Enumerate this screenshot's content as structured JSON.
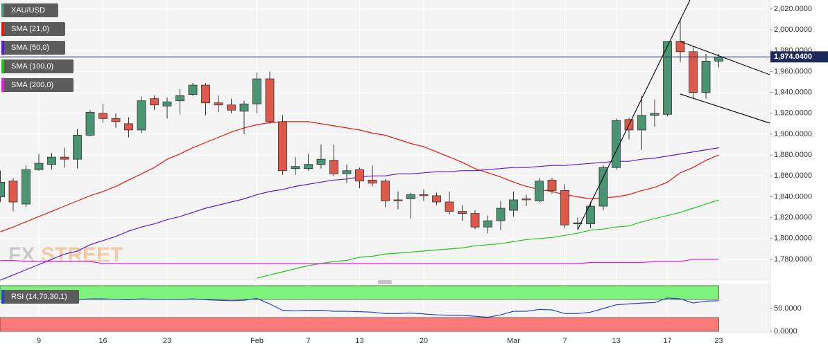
{
  "chart_data": {
    "type": "candlestick",
    "title": "XAU/USD",
    "up_color": "#4a9473",
    "down_color": "#e0584a",
    "categories": [
      null,
      null,
      null,
      "9",
      null,
      null,
      null,
      null,
      "16",
      null,
      null,
      null,
      null,
      "23",
      null,
      null,
      null,
      null,
      null,
      null,
      "Feb",
      null,
      null,
      null,
      "7",
      null,
      null,
      null,
      "13",
      null,
      null,
      null,
      null,
      "20",
      null,
      null,
      null,
      null,
      null,
      null,
      "Mar",
      null,
      null,
      null,
      "7",
      null,
      null,
      null,
      "13",
      null,
      null,
      null,
      "17",
      null,
      null,
      null,
      "23"
    ],
    "open": [
      1840,
      1855,
      1833,
      1866,
      1871,
      1878,
      1876,
      1899,
      1920,
      1915,
      1910,
      1904,
      1934,
      1927,
      1932,
      1938,
      1947,
      1930,
      1928,
      1922,
      1929,
      1953,
      1912,
      1867,
      1867,
      1871,
      1875,
      1862,
      1866,
      1856,
      1855,
      1837,
      1838,
      1842,
      1841,
      1835,
      1826,
      1824,
      1811,
      1817,
      1827,
      1838,
      1836,
      1856,
      1846,
      1814,
      1814,
      1831,
      1868,
      1914,
      1904,
      1918,
      1919,
      1989,
      1979,
      1940,
      1970
    ],
    "high": [
      1865,
      1858,
      1870,
      1881,
      1882,
      1887,
      1905,
      1923,
      1929,
      1920,
      1916,
      1936,
      1937,
      1935,
      1943,
      1949,
      1949,
      1937,
      1934,
      1932,
      1959,
      1960,
      1918,
      1878,
      1881,
      1890,
      1890,
      1871,
      1868,
      1870,
      1857,
      1845,
      1844,
      1847,
      1844,
      1845,
      1832,
      1827,
      1822,
      1836,
      1845,
      1842,
      1858,
      1858,
      1852,
      1820,
      1835,
      1870,
      1915,
      1916,
      1937,
      1933,
      1989,
      2010,
      1984,
      1977,
      1977
    ],
    "low": [
      1835,
      1826,
      1830,
      1865,
      1866,
      1868,
      1867,
      1898,
      1911,
      1906,
      1897,
      1901,
      1923,
      1915,
      1919,
      1937,
      1918,
      1921,
      1920,
      1900,
      1920,
      1910,
      1861,
      1861,
      1865,
      1867,
      1860,
      1853,
      1848,
      1850,
      1830,
      1828,
      1819,
      1836,
      1832,
      1823,
      1817,
      1809,
      1805,
      1808,
      1821,
      1831,
      1835,
      1843,
      1810,
      1808,
      1810,
      1827,
      1866,
      1895,
      1885,
      1907,
      1917,
      1969,
      1934,
      1934,
      1964
    ],
    "close": [
      1854,
      1835,
      1866,
      1872,
      1878,
      1876,
      1899,
      1921,
      1915,
      1912,
      1904,
      1932,
      1928,
      1931,
      1937,
      1947,
      1930,
      1928,
      1923,
      1929,
      1953,
      1912,
      1865,
      1869,
      1871,
      1876,
      1862,
      1865,
      1855,
      1853,
      1836,
      1836,
      1842,
      1841,
      1835,
      1826,
      1824,
      1811,
      1817,
      1829,
      1837,
      1837,
      1855,
      1846,
      1813,
      1815,
      1831,
      1868,
      1913,
      1904,
      1918,
      1920,
      1989,
      1979,
      1940,
      1970,
      1974
    ],
    "ylim": [
      1761.4,
      2028.6
    ],
    "yticks": [
      {
        "value": 1780,
        "label": "1,780.0000"
      },
      {
        "value": 1800,
        "label": "1,800.0000"
      },
      {
        "value": 1820,
        "label": "1,820.0000"
      },
      {
        "value": 1840,
        "label": "1,840.0000"
      },
      {
        "value": 1860,
        "label": "1,860.0000"
      },
      {
        "value": 1880,
        "label": "1,880.0000"
      },
      {
        "value": 1900,
        "label": "1,900.0000"
      },
      {
        "value": 1920,
        "label": "1,920.0000"
      },
      {
        "value": 1940,
        "label": "1,940.0000"
      },
      {
        "value": 1960,
        "label": "1,960.0000"
      },
      {
        "value": 1980,
        "label": "1,980.0000"
      },
      {
        "value": 2000,
        "label": "2,000.0000"
      },
      {
        "value": 2020,
        "label": "2,020.0000"
      }
    ],
    "current_price": {
      "value": 1974.04,
      "label": "1,974.0400"
    },
    "current_color": "#1e2a5a",
    "series": [
      {
        "name": "SMA (21,0)",
        "color": "#e8160c",
        "values": [
          1806.5,
          1811,
          1816,
          1821,
          1826,
          1831,
          1836,
          1841,
          1845,
          1850,
          1856,
          1862,
          1868,
          1876,
          1881,
          1887,
          1892,
          1897,
          1902,
          1906,
          1909,
          1911,
          1912,
          1912,
          1912,
          1910,
          1908,
          1906,
          1904,
          1901,
          1899,
          1895,
          1891,
          1888,
          1883,
          1878,
          1873,
          1867,
          1863,
          1859,
          1854,
          1850,
          1847,
          1845,
          1842,
          1840,
          1838,
          1839,
          1840,
          1842,
          1846,
          1849,
          1854,
          1863,
          1868,
          1875,
          1880
        ]
      },
      {
        "name": "SMA (50,0)",
        "color": "#5b19d9",
        "values": [
          1760,
          1765,
          1770,
          1775,
          1780,
          1785,
          1788,
          1794,
          1798,
          1802,
          1807,
          1811,
          1814,
          1818,
          1821,
          1825,
          1829,
          1832,
          1835,
          1838,
          1842,
          1845,
          1847,
          1850,
          1852,
          1854,
          1856,
          1857,
          1859,
          1860,
          1860,
          1862,
          1862,
          1863,
          1864,
          1864,
          1865,
          1865,
          1866,
          1867,
          1868,
          1868,
          1869,
          1870,
          1870,
          1871,
          1872,
          1873,
          1874,
          1874,
          1876,
          1877,
          1879,
          1881,
          1883,
          1885,
          1887
        ]
      },
      {
        "name": "SMA (100,0)",
        "color": "#22c41d",
        "values": [
          null,
          null,
          null,
          null,
          null,
          null,
          null,
          null,
          null,
          null,
          null,
          null,
          null,
          null,
          null,
          null,
          null,
          null,
          null,
          null,
          1762,
          1765,
          1768,
          1771,
          1774,
          1776,
          1778,
          1779,
          1782,
          1783,
          1785,
          1786,
          1787,
          1788,
          1789,
          1790,
          1791,
          1793,
          1794,
          1795,
          1797,
          1799,
          1800,
          1801,
          1803,
          1805,
          1808,
          1809,
          1811,
          1812,
          1816,
          1819,
          1822,
          1825,
          1829,
          1833,
          1837
        ]
      },
      {
        "name": "SMA (200,0)",
        "color": "#e81ee6",
        "values": [
          1779,
          1779,
          1778,
          1778,
          1778,
          1778,
          1778,
          1778,
          1776,
          1776,
          1776,
          1776,
          1776,
          1776,
          1776,
          1776,
          1776,
          1776,
          1776,
          1776,
          1776,
          1776,
          1776,
          1776,
          1776,
          1776,
          1776,
          1776,
          1776,
          1776,
          1776,
          1776,
          1776,
          1776,
          1776,
          1776,
          1776,
          1776,
          1776,
          1776,
          1776,
          1776,
          1776,
          1776,
          1776,
          1776,
          1777,
          1777,
          1777,
          1777,
          1777,
          1778,
          1778,
          1778,
          1780,
          1780,
          1780
        ]
      }
    ],
    "rsi": {
      "name": "RSI (14,70,30,1)",
      "color": "#2346c8",
      "upper": 70,
      "lower": 30,
      "upper_color": "#7ef27a",
      "lower_color": "#fa7b78",
      "values": [
        64,
        68,
        70,
        70,
        71,
        70,
        69,
        71,
        71,
        70,
        69,
        71,
        70,
        70,
        70,
        71,
        69,
        68,
        67,
        68,
        72,
        60,
        46,
        45,
        46,
        46,
        44,
        44,
        43,
        42,
        39,
        39,
        40,
        38,
        36,
        35,
        35,
        33,
        31,
        36,
        44,
        44,
        48,
        47,
        39,
        39,
        42,
        50,
        58,
        60,
        62,
        63,
        73,
        71,
        62,
        66,
        67
      ],
      "ylim": [
        -4.5,
        104.5
      ],
      "yticks": [
        {
          "value": 0,
          "label": "0.0000"
        },
        {
          "value": 50,
          "label": "50.0000"
        }
      ]
    },
    "watermark": [
      "FX",
      "STREET"
    ]
  }
}
